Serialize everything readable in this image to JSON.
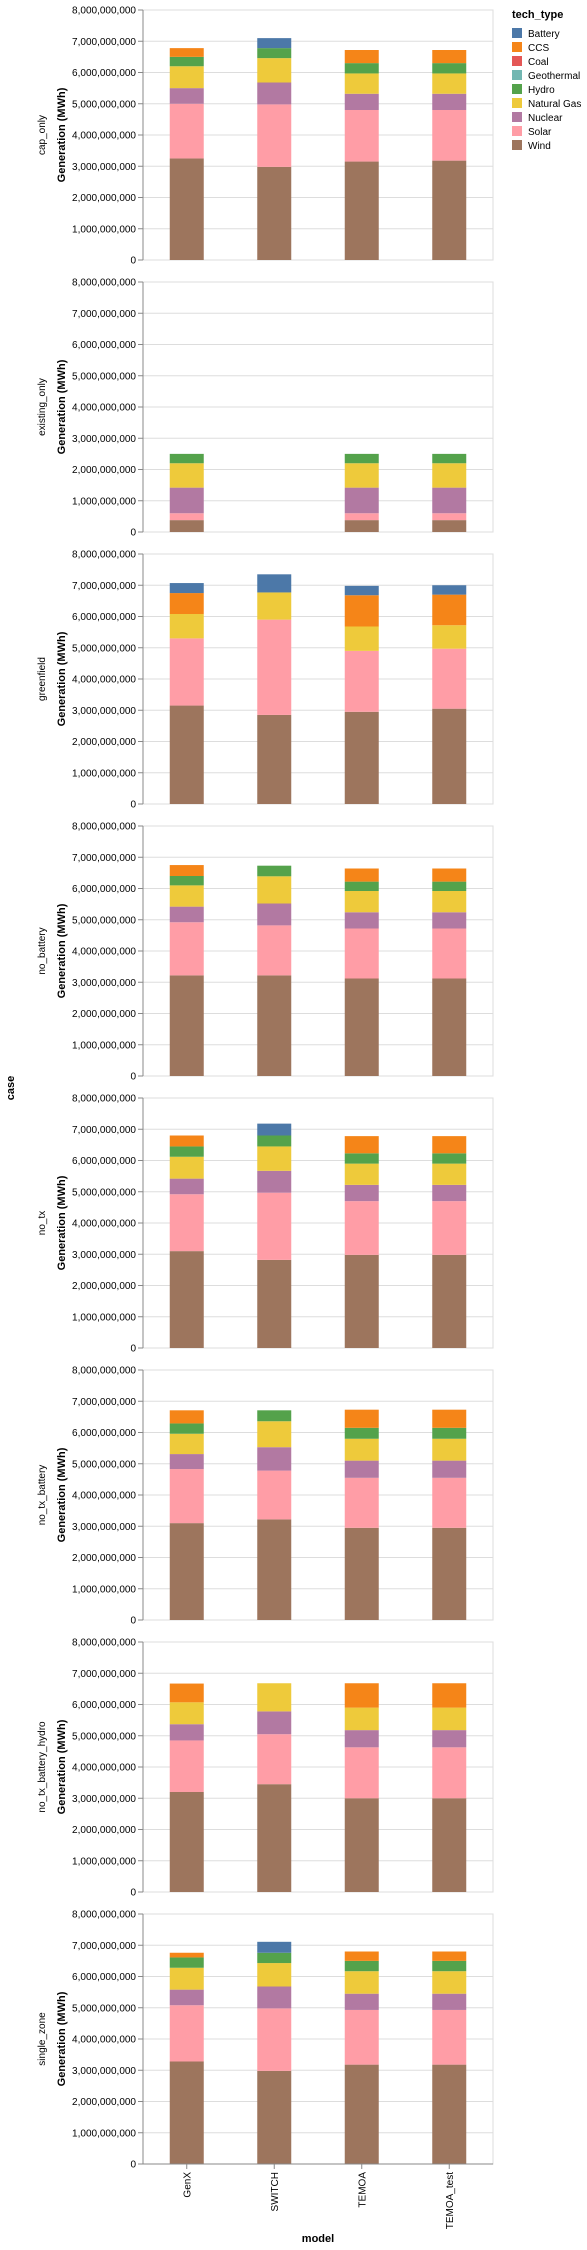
{
  "chart_data": {
    "type": "bar",
    "stacked": true,
    "facet_field": "case",
    "x_field": "model",
    "xlabel": "model",
    "ylabel": "Generation (MWh)",
    "facet_axis_title": "case",
    "categories": [
      "GenX",
      "SWITCH",
      "TEMOA",
      "TEMOA_test"
    ],
    "ylim": [
      0,
      8000000000
    ],
    "y_ticks": [
      0,
      1000000000,
      2000000000,
      3000000000,
      4000000000,
      5000000000,
      6000000000,
      7000000000,
      8000000000
    ],
    "y_tick_labels": [
      "0",
      "1,000,000,000",
      "2,000,000,000",
      "3,000,000,000",
      "4,000,000,000",
      "5,000,000,000",
      "6,000,000,000",
      "7,000,000,000",
      "8,000,000,000"
    ],
    "grid": true,
    "legend": {
      "title": "tech_type",
      "position": "top-right",
      "entries": [
        {
          "name": "Battery",
          "color": "#4c78a8"
        },
        {
          "name": "CCS",
          "color": "#f58518"
        },
        {
          "name": "Coal",
          "color": "#e45756"
        },
        {
          "name": "Geothermal",
          "color": "#72b7b2"
        },
        {
          "name": "Hydro",
          "color": "#54a24b"
        },
        {
          "name": "Natural Gas",
          "color": "#eeca3b"
        },
        {
          "name": "Nuclear",
          "color": "#b279a2"
        },
        {
          "name": "Solar",
          "color": "#ff9da6"
        },
        {
          "name": "Wind",
          "color": "#9d755d"
        }
      ]
    },
    "stack_order": [
      "Wind",
      "Solar",
      "Nuclear",
      "Natural Gas",
      "Hydro",
      "Geothermal",
      "Coal",
      "CCS",
      "Battery"
    ],
    "facets": [
      {
        "case": "cap_only",
        "bars": [
          {
            "model": "GenX",
            "Wind": 3250000000,
            "Solar": 1750000000,
            "Nuclear": 500000000,
            "Natural Gas": 700000000,
            "Hydro": 300000000,
            "Geothermal": 0,
            "Coal": 0,
            "CCS": 280000000,
            "Battery": 0
          },
          {
            "model": "SWITCH",
            "Wind": 2980000000,
            "Solar": 2000000000,
            "Nuclear": 700000000,
            "Natural Gas": 780000000,
            "Hydro": 320000000,
            "Geothermal": 0,
            "Coal": 0,
            "CCS": 0,
            "Battery": 320000000
          },
          {
            "model": "TEMOA",
            "Wind": 3150000000,
            "Solar": 1650000000,
            "Nuclear": 520000000,
            "Natural Gas": 650000000,
            "Hydro": 330000000,
            "Geothermal": 0,
            "Coal": 0,
            "CCS": 420000000,
            "Battery": 0
          },
          {
            "model": "TEMOA_test",
            "Wind": 3180000000,
            "Solar": 1620000000,
            "Nuclear": 520000000,
            "Natural Gas": 650000000,
            "Hydro": 330000000,
            "Geothermal": 0,
            "Coal": 0,
            "CCS": 420000000,
            "Battery": 0
          }
        ]
      },
      {
        "case": "existing_only",
        "bars": [
          {
            "model": "GenX",
            "Wind": 380000000,
            "Solar": 220000000,
            "Nuclear": 820000000,
            "Natural Gas": 780000000,
            "Hydro": 300000000,
            "Geothermal": 0,
            "Coal": 0,
            "CCS": 0,
            "Battery": 0
          },
          {
            "model": "SWITCH",
            "Wind": 0,
            "Solar": 0,
            "Nuclear": 0,
            "Natural Gas": 0,
            "Hydro": 0,
            "Geothermal": 0,
            "Coal": 0,
            "CCS": 0,
            "Battery": 0
          },
          {
            "model": "TEMOA",
            "Wind": 380000000,
            "Solar": 220000000,
            "Nuclear": 820000000,
            "Natural Gas": 780000000,
            "Hydro": 300000000,
            "Geothermal": 0,
            "Coal": 0,
            "CCS": 0,
            "Battery": 0
          },
          {
            "model": "TEMOA_test",
            "Wind": 380000000,
            "Solar": 220000000,
            "Nuclear": 820000000,
            "Natural Gas": 780000000,
            "Hydro": 300000000,
            "Geothermal": 0,
            "Coal": 0,
            "CCS": 0,
            "Battery": 0
          }
        ]
      },
      {
        "case": "greenfield",
        "bars": [
          {
            "model": "GenX",
            "Wind": 3150000000,
            "Solar": 2150000000,
            "Nuclear": 0,
            "Natural Gas": 780000000,
            "Hydro": 0,
            "Geothermal": 0,
            "Coal": 0,
            "CCS": 670000000,
            "Battery": 320000000
          },
          {
            "model": "SWITCH",
            "Wind": 2850000000,
            "Solar": 3050000000,
            "Nuclear": 0,
            "Natural Gas": 870000000,
            "Hydro": 0,
            "Geothermal": 0,
            "Coal": 0,
            "CCS": 0,
            "Battery": 580000000
          },
          {
            "model": "TEMOA",
            "Wind": 2950000000,
            "Solar": 1950000000,
            "Nuclear": 0,
            "Natural Gas": 780000000,
            "Hydro": 0,
            "Geothermal": 0,
            "Coal": 0,
            "CCS": 1000000000,
            "Battery": 300000000
          },
          {
            "model": "TEMOA_test",
            "Wind": 3050000000,
            "Solar": 1920000000,
            "Nuclear": 0,
            "Natural Gas": 750000000,
            "Hydro": 0,
            "Geothermal": 0,
            "Coal": 0,
            "CCS": 980000000,
            "Battery": 300000000
          }
        ]
      },
      {
        "case": "no_battery",
        "bars": [
          {
            "model": "GenX",
            "Wind": 3220000000,
            "Solar": 1700000000,
            "Nuclear": 500000000,
            "Natural Gas": 680000000,
            "Hydro": 300000000,
            "Geothermal": 0,
            "Coal": 0,
            "CCS": 350000000,
            "Battery": 0
          },
          {
            "model": "SWITCH",
            "Wind": 3220000000,
            "Solar": 1600000000,
            "Nuclear": 700000000,
            "Natural Gas": 870000000,
            "Hydro": 340000000,
            "Geothermal": 0,
            "Coal": 0,
            "CCS": 0,
            "Battery": 0
          },
          {
            "model": "TEMOA",
            "Wind": 3120000000,
            "Solar": 1600000000,
            "Nuclear": 520000000,
            "Natural Gas": 680000000,
            "Hydro": 300000000,
            "Geothermal": 0,
            "Coal": 0,
            "CCS": 420000000,
            "Battery": 0
          },
          {
            "model": "TEMOA_test",
            "Wind": 3120000000,
            "Solar": 1600000000,
            "Nuclear": 520000000,
            "Natural Gas": 680000000,
            "Hydro": 300000000,
            "Geothermal": 0,
            "Coal": 0,
            "CCS": 420000000,
            "Battery": 0
          }
        ]
      },
      {
        "case": "no_tx",
        "bars": [
          {
            "model": "GenX",
            "Wind": 3100000000,
            "Solar": 1820000000,
            "Nuclear": 500000000,
            "Natural Gas": 700000000,
            "Hydro": 330000000,
            "Geothermal": 0,
            "Coal": 0,
            "CCS": 350000000,
            "Battery": 0
          },
          {
            "model": "SWITCH",
            "Wind": 2820000000,
            "Solar": 2150000000,
            "Nuclear": 700000000,
            "Natural Gas": 780000000,
            "Hydro": 350000000,
            "Geothermal": 0,
            "Coal": 0,
            "CCS": 0,
            "Battery": 380000000
          },
          {
            "model": "TEMOA",
            "Wind": 2980000000,
            "Solar": 1720000000,
            "Nuclear": 520000000,
            "Natural Gas": 680000000,
            "Hydro": 330000000,
            "Geothermal": 0,
            "Coal": 0,
            "CCS": 550000000,
            "Battery": 0
          },
          {
            "model": "TEMOA_test",
            "Wind": 2980000000,
            "Solar": 1720000000,
            "Nuclear": 520000000,
            "Natural Gas": 680000000,
            "Hydro": 330000000,
            "Geothermal": 0,
            "Coal": 0,
            "CCS": 550000000,
            "Battery": 0
          }
        ]
      },
      {
        "case": "no_tx_battery",
        "bars": [
          {
            "model": "GenX",
            "Wind": 3100000000,
            "Solar": 1730000000,
            "Nuclear": 480000000,
            "Natural Gas": 650000000,
            "Hydro": 330000000,
            "Geothermal": 0,
            "Coal": 0,
            "CCS": 420000000,
            "Battery": 0
          },
          {
            "model": "SWITCH",
            "Wind": 3220000000,
            "Solar": 1560000000,
            "Nuclear": 750000000,
            "Natural Gas": 830000000,
            "Hydro": 350000000,
            "Geothermal": 0,
            "Coal": 0,
            "CCS": 0,
            "Battery": 0
          },
          {
            "model": "TEMOA",
            "Wind": 2950000000,
            "Solar": 1600000000,
            "Nuclear": 550000000,
            "Natural Gas": 700000000,
            "Hydro": 350000000,
            "Geothermal": 0,
            "Coal": 0,
            "CCS": 580000000,
            "Battery": 0
          },
          {
            "model": "TEMOA_test",
            "Wind": 2950000000,
            "Solar": 1600000000,
            "Nuclear": 550000000,
            "Natural Gas": 700000000,
            "Hydro": 350000000,
            "Geothermal": 0,
            "Coal": 0,
            "CCS": 580000000,
            "Battery": 0
          }
        ]
      },
      {
        "case": "no_tx_battery_hydro",
        "bars": [
          {
            "model": "GenX",
            "Wind": 3200000000,
            "Solar": 1650000000,
            "Nuclear": 520000000,
            "Natural Gas": 700000000,
            "Hydro": 0,
            "Geothermal": 0,
            "Coal": 0,
            "CCS": 600000000,
            "Battery": 0
          },
          {
            "model": "SWITCH",
            "Wind": 3450000000,
            "Solar": 1600000000,
            "Nuclear": 730000000,
            "Natural Gas": 900000000,
            "Hydro": 0,
            "Geothermal": 0,
            "Coal": 0,
            "CCS": 0,
            "Battery": 0
          },
          {
            "model": "TEMOA",
            "Wind": 3000000000,
            "Solar": 1630000000,
            "Nuclear": 550000000,
            "Natural Gas": 720000000,
            "Hydro": 0,
            "Geothermal": 0,
            "Coal": 0,
            "CCS": 780000000,
            "Battery": 0
          },
          {
            "model": "TEMOA_test",
            "Wind": 3000000000,
            "Solar": 1630000000,
            "Nuclear": 550000000,
            "Natural Gas": 720000000,
            "Hydro": 0,
            "Geothermal": 0,
            "Coal": 0,
            "CCS": 780000000,
            "Battery": 0
          }
        ]
      },
      {
        "case": "single_zone",
        "bars": [
          {
            "model": "GenX",
            "Wind": 3280000000,
            "Solar": 1800000000,
            "Nuclear": 500000000,
            "Natural Gas": 700000000,
            "Hydro": 330000000,
            "Geothermal": 0,
            "Coal": 0,
            "CCS": 150000000,
            "Battery": 0
          },
          {
            "model": "SWITCH",
            "Wind": 2980000000,
            "Solar": 2000000000,
            "Nuclear": 700000000,
            "Natural Gas": 750000000,
            "Hydro": 330000000,
            "Geothermal": 0,
            "Coal": 0,
            "CCS": 0,
            "Battery": 350000000
          },
          {
            "model": "TEMOA",
            "Wind": 3180000000,
            "Solar": 1750000000,
            "Nuclear": 520000000,
            "Natural Gas": 720000000,
            "Hydro": 330000000,
            "Geothermal": 0,
            "Coal": 0,
            "CCS": 300000000,
            "Battery": 0
          },
          {
            "model": "TEMOA_test",
            "Wind": 3180000000,
            "Solar": 1750000000,
            "Nuclear": 520000000,
            "Natural Gas": 720000000,
            "Hydro": 330000000,
            "Geothermal": 0,
            "Coal": 0,
            "CCS": 300000000,
            "Battery": 0
          }
        ]
      }
    ]
  }
}
